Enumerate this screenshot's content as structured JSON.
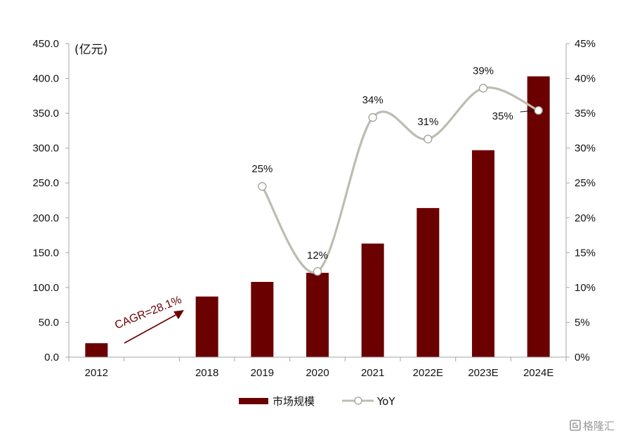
{
  "chart_data": {
    "type": "bar",
    "categories": [
      "2012",
      "",
      "2018",
      "2019",
      "2020",
      "2021",
      "2022E",
      "2023E",
      "2024E"
    ],
    "series": [
      {
        "name": "市场规模",
        "kind": "bar",
        "axis": "left",
        "color": "#6b0000",
        "values": [
          20.0,
          null,
          87.0,
          108.0,
          121.0,
          163.0,
          214.0,
          297.0,
          403.0
        ]
      },
      {
        "name": "YoY",
        "kind": "line",
        "axis": "right",
        "color": "#bdbcb0",
        "values": [
          null,
          null,
          null,
          24.5,
          12.3,
          34.4,
          31.3,
          38.6,
          35.4
        ],
        "labels": [
          "",
          "",
          "",
          "25%",
          "12%",
          "34%",
          "31%",
          "39%",
          "35%"
        ]
      }
    ],
    "y_left": {
      "unit_label": "(亿元)",
      "range": [
        0,
        450
      ],
      "ticks": [
        "0.0",
        "50.0",
        "100.0",
        "150.0",
        "200.0",
        "250.0",
        "300.0",
        "350.0",
        "400.0",
        "450.0"
      ]
    },
    "y_right": {
      "range": [
        0,
        45
      ],
      "ticks": [
        "0%",
        "5%",
        "10%",
        "15%",
        "20%",
        "25%",
        "30%",
        "35%",
        "40%",
        "45%"
      ]
    },
    "annotation": {
      "text": "CAGR=28.1%",
      "color": "#6b0000"
    },
    "legend": {
      "position": "bottom",
      "items": [
        "市场规模",
        "YoY"
      ]
    },
    "grid": false
  },
  "watermark": {
    "text": "格隆汇",
    "icon": "logo-icon"
  }
}
